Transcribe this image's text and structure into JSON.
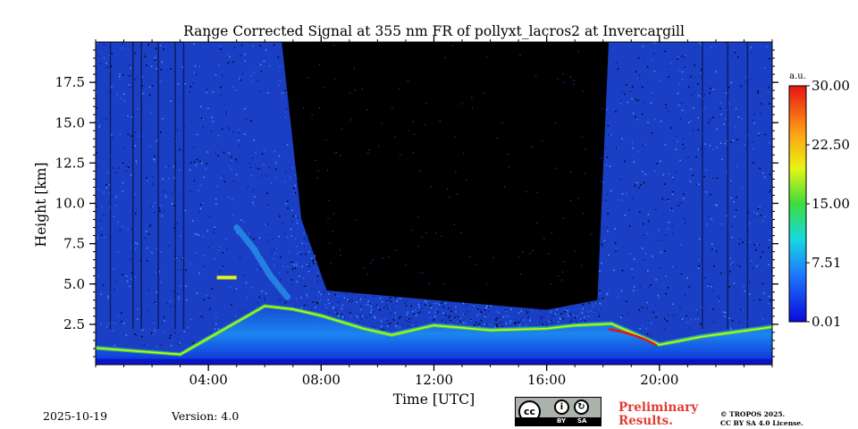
{
  "chart_data": {
    "type": "heatmap",
    "title": "Range Corrected Signal at 355 nm FR of pollyxt_lacros2 at Invercargill",
    "xlabel": "Time [UTC]",
    "ylabel": "Height [km]",
    "xlim": [
      0,
      24
    ],
    "ylim": [
      0,
      20
    ],
    "x_ticks": [
      "04:00",
      "08:00",
      "12:00",
      "16:00",
      "20:00"
    ],
    "x_tick_values": [
      4,
      8,
      12,
      16,
      20
    ],
    "y_ticks": [
      "2.5",
      "5.0",
      "7.5",
      "10.0",
      "12.5",
      "15.0",
      "17.5"
    ],
    "y_tick_values": [
      2.5,
      5.0,
      7.5,
      10.0,
      12.5,
      15.0,
      17.5
    ],
    "colorbar": {
      "unit": "a.u.",
      "range": [
        0.01,
        30.0
      ],
      "ticks": [
        "30.00",
        "22.50",
        "15.00",
        "7.51",
        "0.01"
      ],
      "tick_values": [
        30.0,
        22.5,
        15.0,
        7.51,
        0.01
      ],
      "colormap": "jet"
    },
    "no_data_color": "#000000",
    "top_of_valid_signal_km": [
      {
        "time": 0,
        "height": 20
      },
      {
        "time": 6.6,
        "height": 20
      },
      {
        "time": 7.3,
        "height": 9
      },
      {
        "time": 8.2,
        "height": 4.6
      },
      {
        "time": 12,
        "height": 4.0
      },
      {
        "time": 16,
        "height": 3.4
      },
      {
        "time": 17.8,
        "height": 4.0
      },
      {
        "time": 18.2,
        "height": 20
      },
      {
        "time": 24,
        "height": 20
      }
    ],
    "boundary_layer_top_km": [
      {
        "time": 0,
        "height": 1.2
      },
      {
        "time": 3,
        "height": 0.8
      },
      {
        "time": 6,
        "height": 3.8
      },
      {
        "time": 7,
        "height": 3.6
      },
      {
        "time": 8,
        "height": 3.2
      },
      {
        "time": 9.5,
        "height": 2.4
      },
      {
        "time": 10.5,
        "height": 2.0
      },
      {
        "time": 12,
        "height": 2.6
      },
      {
        "time": 14,
        "height": 2.3
      },
      {
        "time": 16,
        "height": 2.4
      },
      {
        "time": 17,
        "height": 2.6
      },
      {
        "time": 18.3,
        "height": 2.7
      },
      {
        "time": 20,
        "height": 1.4
      },
      {
        "time": 21.5,
        "height": 1.9
      },
      {
        "time": 24,
        "height": 2.5
      }
    ],
    "aerosol_plume_km": [
      {
        "time": 5.0,
        "height": 8.5
      },
      {
        "time": 5.6,
        "height": 7.2
      },
      {
        "time": 6.2,
        "height": 5.5
      },
      {
        "time": 6.8,
        "height": 4.2
      }
    ],
    "elevated_layer_km": {
      "time_start": 4.3,
      "time_end": 5.0,
      "height": 5.4
    }
  },
  "footer": {
    "date": "2025-10-19",
    "version": "Version: 4.0",
    "cc_by": "BY",
    "cc_sa": "SA",
    "cc_text": "cc",
    "preliminary_line1": "Preliminary",
    "preliminary_line2": "Results.",
    "copyright_line1": "© TROPOS 2025.",
    "copyright_line2": "CC BY SA 4.0 License."
  }
}
